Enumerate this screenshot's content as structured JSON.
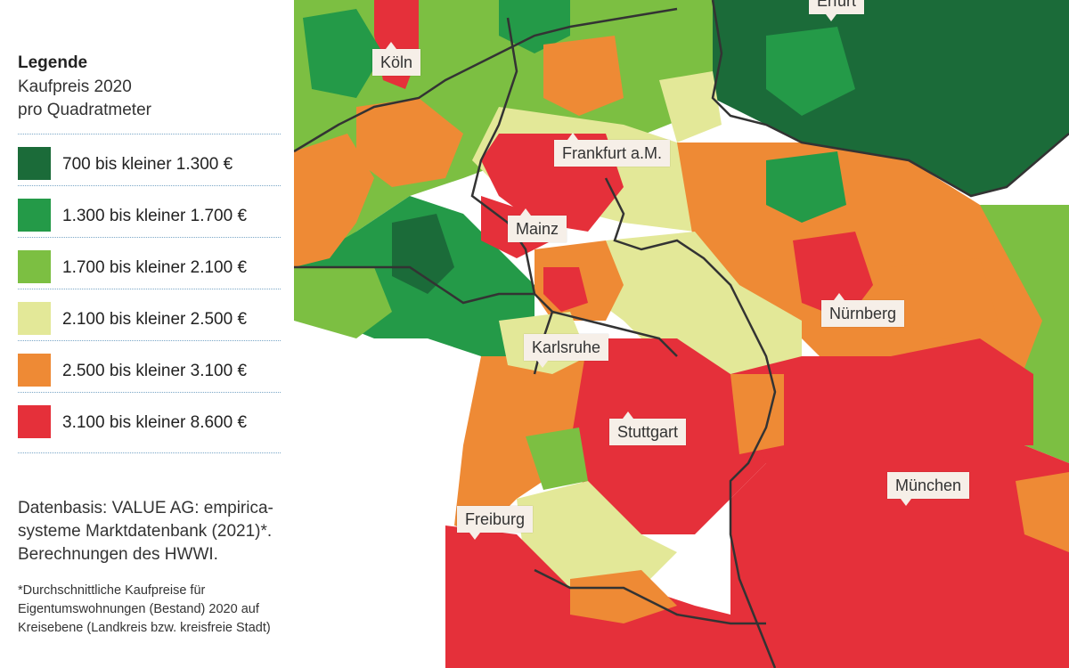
{
  "legend": {
    "title": "Legende",
    "subtitle_line1": "Kaufpreis 2020",
    "subtitle_line2": "pro Quadratmeter",
    "classes": [
      {
        "label": "700 bis kleiner 1.300 €",
        "color": "#1b6b39"
      },
      {
        "label": "1.300 bis kleiner 1.700 €",
        "color": "#249a48"
      },
      {
        "label": "1.700 bis kleiner 2.100 €",
        "color": "#7cbf42"
      },
      {
        "label": "2.100 bis kleiner 2.500 €",
        "color": "#e3e898"
      },
      {
        "label": "2.500 bis kleiner 3.100 €",
        "color": "#ee8a35"
      },
      {
        "label": "3.100 bis kleiner 8.600 €",
        "color": "#e5303a"
      }
    ]
  },
  "source": {
    "line1": "Datenbasis: VALUE AG: empirica-",
    "line2": "systeme Marktdatenbank (2021)*.",
    "line3": "Berechnungen des HWWI."
  },
  "footnote": {
    "line1": "*Durchschnittliche Kaufpreise für",
    "line2": "Eigentumswohnungen (Bestand) 2020 auf",
    "line3": "Kreisebene (Landkreis bzw. kreisfreie Stadt)"
  },
  "cities": {
    "erfurt": "Erfurt",
    "koeln": "Köln",
    "frankfurt": "Frankfurt a.M.",
    "mainz": "Mainz",
    "nuernberg": "Nürnberg",
    "karlsruhe": "Karlsruhe",
    "stuttgart": "Stuttgart",
    "muenchen": "München",
    "freiburg": "Freiburg"
  }
}
